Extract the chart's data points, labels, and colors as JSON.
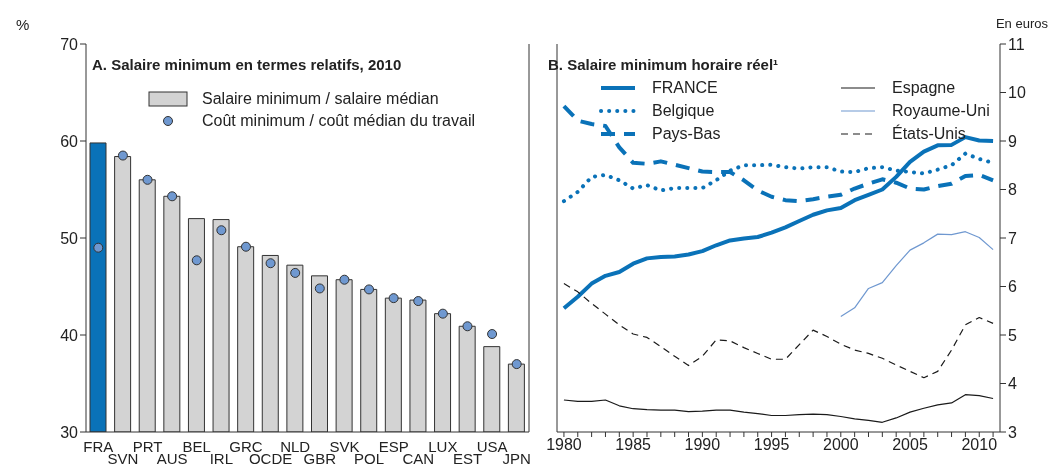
{
  "chart_data": [
    {
      "type": "bar",
      "title": "A. Salaire minimum en termes relatifs, 2010",
      "ylabel": "%",
      "legend": "top",
      "marker": "circle",
      "categories": [
        "FRA",
        "SVN",
        "PRT",
        "AUS",
        "BEL",
        "IRL",
        "GRC",
        "OCDE",
        "NLD",
        "GBR",
        "SVK",
        "POL",
        "ESP",
        "CAN",
        "LUX",
        "EST",
        "USA",
        "JPN"
      ],
      "series": [
        {
          "name": "Salaire minimum / salaire médian",
          "type": "bar",
          "color": "#d3d3d3",
          "colors": [
            "#0a72b8",
            "#d3d3d3",
            "#d3d3d3",
            "#d3d3d3",
            "#d3d3d3",
            "#d3d3d3",
            "#d3d3d3",
            "#d3d3d3",
            "#d3d3d3",
            "#d3d3d3",
            "#d3d3d3",
            "#d3d3d3",
            "#d3d3d3",
            "#d3d3d3",
            "#d3d3d3",
            "#d3d3d3",
            "#d3d3d3",
            "#d3d3d3"
          ],
          "values": [
            59.8,
            58.4,
            56.0,
            54.3,
            52.0,
            51.9,
            49.1,
            48.2,
            47.2,
            46.1,
            45.7,
            44.7,
            43.8,
            43.6,
            42.2,
            40.9,
            38.8,
            37.0
          ]
        },
        {
          "name": "Coût minimum / coût médian du travail",
          "type": "scatter",
          "color": "#6f98d0",
          "values": [
            49.0,
            58.5,
            56.0,
            54.3,
            47.7,
            50.8,
            49.1,
            47.4,
            46.4,
            44.8,
            45.7,
            44.7,
            43.8,
            43.5,
            42.2,
            40.9,
            40.1,
            37.0
          ]
        }
      ],
      "ylim": [
        30,
        70
      ],
      "yticks": [
        30,
        40,
        50,
        60,
        70
      ]
    },
    {
      "type": "line",
      "title": "B. Salaire minimum horaire réel¹",
      "y2label": "En euros",
      "legend": "top",
      "x": [
        1980,
        1981,
        1982,
        1983,
        1984,
        1985,
        1986,
        1987,
        1988,
        1989,
        1990,
        1991,
        1992,
        1993,
        1994,
        1995,
        1996,
        1997,
        1998,
        1999,
        2000,
        2001,
        2002,
        2003,
        2004,
        2005,
        2006,
        2007,
        2008,
        2009,
        2010,
        2011
      ],
      "series": [
        {
          "name": "FRANCE",
          "color": "#0a72b8",
          "line_style": "solid",
          "axis": "y2",
          "values": [
            5.55,
            5.79,
            6.06,
            6.22,
            6.3,
            6.47,
            6.58,
            6.61,
            6.62,
            6.66,
            6.73,
            6.85,
            6.95,
            6.99,
            7.02,
            7.11,
            7.22,
            7.35,
            7.48,
            7.57,
            7.62,
            7.78,
            7.89,
            8.0,
            8.26,
            8.57,
            8.78,
            8.91,
            8.92,
            9.08,
            9.01,
            9.0
          ]
        },
        {
          "name": "Belgique",
          "color": "#0a72b8",
          "line_style": "dotted",
          "axis": "y2",
          "values": [
            7.76,
            7.95,
            8.26,
            8.3,
            8.19,
            8.02,
            8.09,
            7.98,
            8.03,
            8.03,
            8.03,
            8.19,
            8.39,
            8.5,
            8.5,
            8.51,
            8.46,
            8.43,
            8.46,
            8.46,
            8.37,
            8.36,
            8.44,
            8.46,
            8.39,
            8.36,
            8.33,
            8.41,
            8.5,
            8.74,
            8.63,
            8.55
          ]
        },
        {
          "name": "Pays-Bas",
          "color": "#0a72b8",
          "line_style": "dashed",
          "axis": "y2",
          "values": [
            9.72,
            9.42,
            9.35,
            9.31,
            8.87,
            8.55,
            8.53,
            8.58,
            8.51,
            8.44,
            8.37,
            8.36,
            8.36,
            8.19,
            7.98,
            7.85,
            7.78,
            7.76,
            7.8,
            7.85,
            7.89,
            8.02,
            8.12,
            8.21,
            8.14,
            8.02,
            8.0,
            8.07,
            8.12,
            8.28,
            8.3,
            8.19
          ]
        },
        {
          "name": "Espagne",
          "color": "#1a1a1a",
          "line_style": "solid",
          "axis": "y2",
          "values": [
            3.66,
            3.63,
            3.63,
            3.66,
            3.54,
            3.48,
            3.46,
            3.45,
            3.45,
            3.42,
            3.43,
            3.45,
            3.45,
            3.41,
            3.38,
            3.34,
            3.34,
            3.36,
            3.37,
            3.36,
            3.32,
            3.27,
            3.24,
            3.2,
            3.29,
            3.41,
            3.49,
            3.56,
            3.6,
            3.77,
            3.75,
            3.69
          ]
        },
        {
          "name": "Royaume-Uni",
          "color": "#6f98d0",
          "line_style": "solid",
          "axis": "y2",
          "values": [
            null,
            null,
            null,
            null,
            null,
            null,
            null,
            null,
            null,
            null,
            null,
            null,
            null,
            null,
            null,
            null,
            null,
            null,
            null,
            null,
            5.38,
            5.56,
            5.96,
            6.08,
            6.43,
            6.75,
            6.9,
            7.08,
            7.07,
            7.13,
            7.01,
            6.76
          ]
        },
        {
          "name": "États-Unis",
          "color": "#1a1a1a",
          "line_style": "dashed",
          "axis": "y2",
          "values": [
            6.06,
            5.89,
            5.65,
            5.43,
            5.21,
            5.02,
            4.95,
            4.76,
            4.56,
            4.37,
            4.56,
            4.9,
            4.88,
            4.74,
            4.62,
            4.5,
            4.5,
            4.8,
            5.1,
            4.97,
            4.81,
            4.69,
            4.62,
            4.52,
            4.38,
            4.25,
            4.12,
            4.25,
            4.69,
            5.21,
            5.36,
            5.24
          ]
        }
      ],
      "xlim": [
        1979.5,
        2011.5
      ],
      "xticks": [
        1980,
        {
          "value": 1981,
          "label": null
        },
        {
          "value": 1982,
          "label": null
        },
        {
          "value": 1983,
          "label": null
        },
        {
          "value": 1984,
          "label": null
        },
        1985,
        {
          "value": 1986,
          "label": null
        },
        {
          "value": 1987,
          "label": null
        },
        {
          "value": 1988,
          "label": null
        },
        {
          "value": 1989,
          "label": null
        },
        1990,
        {
          "value": 1991,
          "label": null
        },
        {
          "value": 1992,
          "label": null
        },
        {
          "value": 1993,
          "label": null
        },
        {
          "value": 1994,
          "label": null
        },
        1995,
        {
          "value": 1996,
          "label": null
        },
        {
          "value": 1997,
          "label": null
        },
        {
          "value": 1998,
          "label": null
        },
        {
          "value": 1999,
          "label": null
        },
        2000,
        {
          "value": 2001,
          "label": null
        },
        {
          "value": 2002,
          "label": null
        },
        {
          "value": 2003,
          "label": null
        },
        {
          "value": 2004,
          "label": null
        },
        2005,
        {
          "value": 2006,
          "label": null
        },
        {
          "value": 2007,
          "label": null
        },
        {
          "value": 2008,
          "label": null
        },
        {
          "value": 2009,
          "label": null
        },
        2010,
        {
          "value": 2011,
          "label": null
        }
      ],
      "y2lim": [
        3,
        11
      ],
      "y2ticks": [
        3,
        4,
        5,
        6,
        7,
        8,
        9,
        10,
        11
      ]
    }
  ]
}
